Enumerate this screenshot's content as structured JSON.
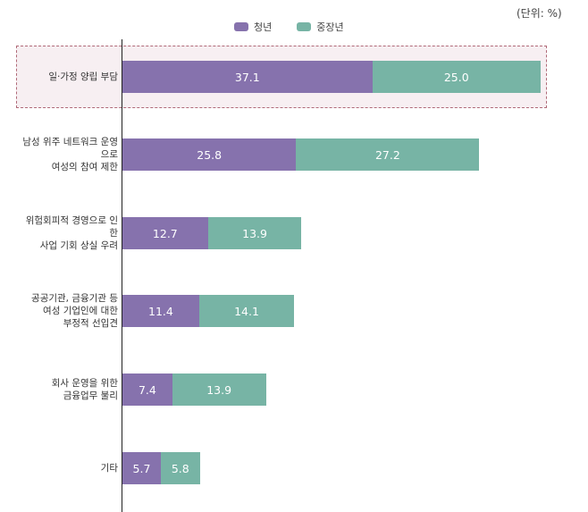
{
  "unit_label": "(단위: %)",
  "colors": {
    "youth": "#8672ad",
    "middle": "#77b4a5",
    "highlight_border": "#b06a78"
  },
  "chart_data": {
    "type": "bar",
    "orientation": "horizontal",
    "stacked": true,
    "categories": [
      "일·가정 양립 부담",
      "남성 위주 네트워크 운영으로\n여성의 참여 제한",
      "위험회피적 경영으로 인한\n사업 기회 상실 우려",
      "공공기관, 금융기관 등\n여성 기업인에 대한\n부정적 선입견",
      "회사 운영을 위한\n금융업무 불리",
      "기타"
    ],
    "series": [
      {
        "name": "청년",
        "values": [
          37.1,
          25.8,
          12.7,
          11.4,
          7.4,
          5.7
        ]
      },
      {
        "name": "중장년",
        "values": [
          25.0,
          27.2,
          13.9,
          14.1,
          13.9,
          5.8
        ]
      }
    ],
    "highlighted_category_index": 0,
    "legend_position": "top-center",
    "grid": false
  }
}
